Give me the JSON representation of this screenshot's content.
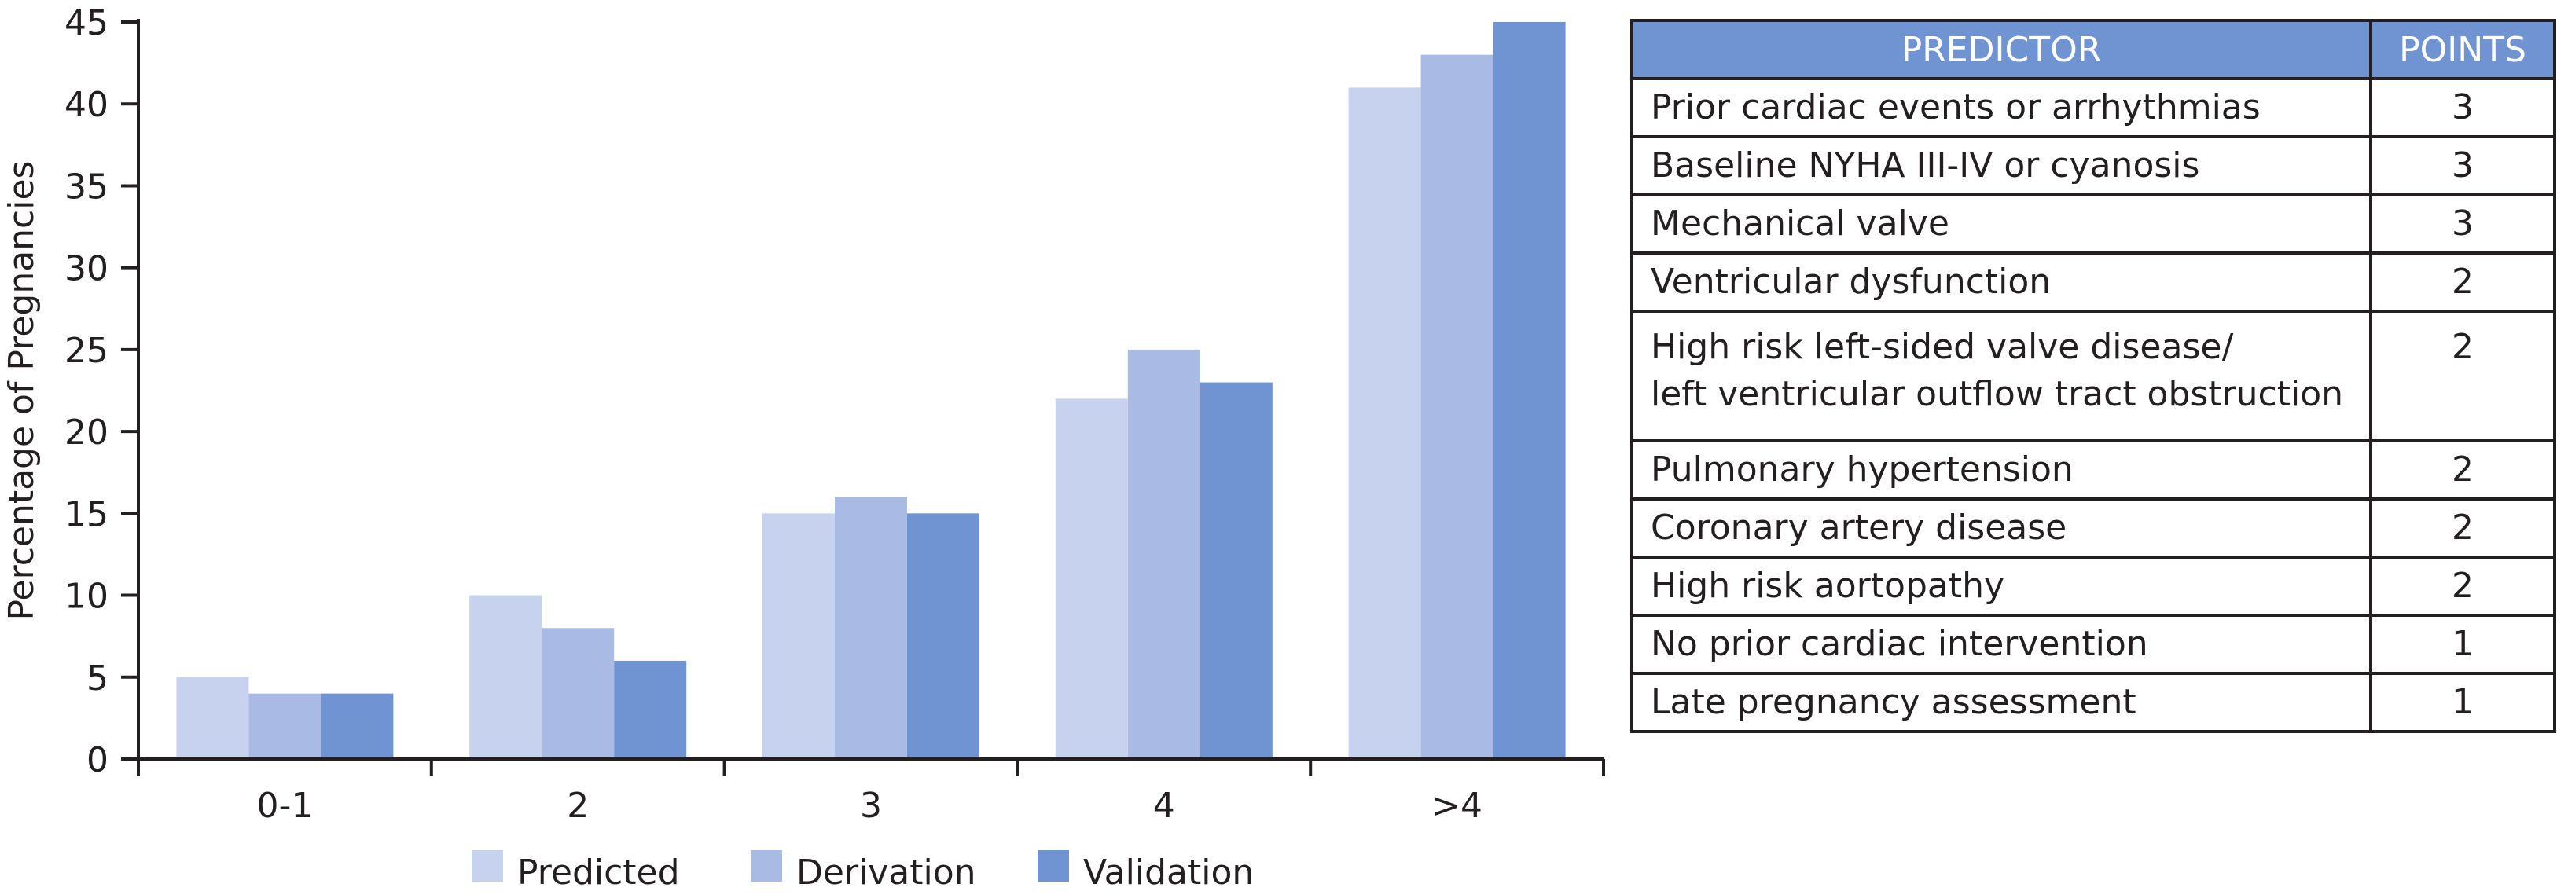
{
  "chart_data": {
    "type": "bar",
    "categories": [
      "0-1",
      "2",
      "3",
      "4",
      ">4"
    ],
    "series": [
      {
        "name": "Predicted",
        "values": [
          5,
          10,
          15,
          22,
          41
        ],
        "color": "#c7d3ee"
      },
      {
        "name": "Derivation",
        "values": [
          4,
          8,
          16,
          25,
          43
        ],
        "color": "#a9bbe4"
      },
      {
        "name": "Validation",
        "values": [
          4,
          6,
          15,
          23,
          45
        ],
        "color": "#7094d1"
      }
    ],
    "ylabel": "Percentage of Pregnancies",
    "xlabel": "",
    "ylim": [
      0,
      45
    ],
    "yticks": [
      0,
      5,
      10,
      15,
      20,
      25,
      30,
      35,
      40,
      45
    ],
    "grid": false,
    "legend_position": "bottom"
  },
  "table": {
    "header": {
      "predictor": "PREDICTOR",
      "points": "POINTS"
    },
    "rows": [
      {
        "predictor": "Prior cardiac events or arrhythmias",
        "points": "3"
      },
      {
        "predictor": "Baseline NYHA III-IV or cyanosis",
        "points": "3"
      },
      {
        "predictor": "Mechanical valve",
        "points": "3"
      },
      {
        "predictor": "Ventricular dysfunction",
        "points": "2"
      },
      {
        "predictor": "High risk left-sided valve disease/",
        "predictor_line2": "left ventricular outflow tract obstruction",
        "points": "2"
      },
      {
        "predictor": "Pulmonary hypertension",
        "points": "2"
      },
      {
        "predictor": "Coronary artery disease",
        "points": "2"
      },
      {
        "predictor": "High risk aortopathy",
        "points": "2"
      },
      {
        "predictor": "No prior cardiac intervention",
        "points": "1"
      },
      {
        "predictor": "Late pregnancy assessment",
        "points": "1"
      }
    ],
    "header_color": "#7094d1"
  }
}
